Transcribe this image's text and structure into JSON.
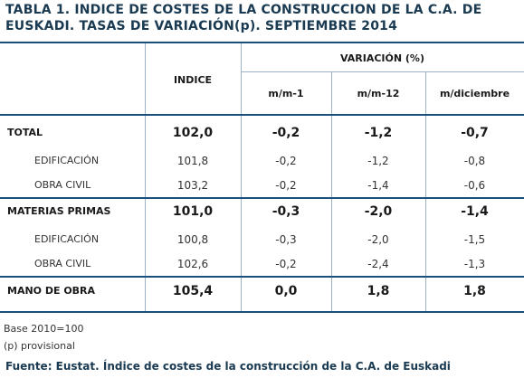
{
  "title": "TABLA 1. INDICE DE COSTES DE LA CONSTRUCCION DE LA C.A. DE EUSKADI. TASAS DE VARIACIÓN(p). SEPTIEMBRE 2014",
  "header": {
    "indice": "INDICE",
    "variacion": "VARIACIÓN (%)",
    "cols": [
      "m/m-1",
      "m/m-12",
      "m/diciembre"
    ]
  },
  "rows": [
    {
      "label": "TOTAL",
      "indice": "102,0",
      "m1": "-0,2",
      "m12": "-1,2",
      "mdic": "-0,7"
    },
    {
      "label": "EDIFICACIÓN",
      "indice": "101,8",
      "m1": "-0,2",
      "m12": "-1,2",
      "mdic": "-0,8"
    },
    {
      "label": "OBRA CIVIL",
      "indice": "103,2",
      "m1": "-0,2",
      "m12": "-1,4",
      "mdic": "-0,6"
    },
    {
      "label": "MATERIAS PRIMAS",
      "indice": "101,0",
      "m1": "-0,3",
      "m12": "-2,0",
      "mdic": "-1,4"
    },
    {
      "label": "EDIFICACIÓN",
      "indice": "100,8",
      "m1": "-0,3",
      "m12": "-2,0",
      "mdic": "-1,5"
    },
    {
      "label": "OBRA CIVIL",
      "indice": "102,6",
      "m1": "-0,2",
      "m12": "-2,4",
      "mdic": "-1,3"
    },
    {
      "label": "MANO DE OBRA",
      "indice": "105,4",
      "m1": "0,0",
      "m12": "1,8",
      "mdic": "1,8"
    }
  ],
  "notes": [
    "Base 2010=100",
    "(p) provisional"
  ],
  "source": "Fuente: Eustat. Índice de costes de la construcción de la C.A. de Euskadi"
}
